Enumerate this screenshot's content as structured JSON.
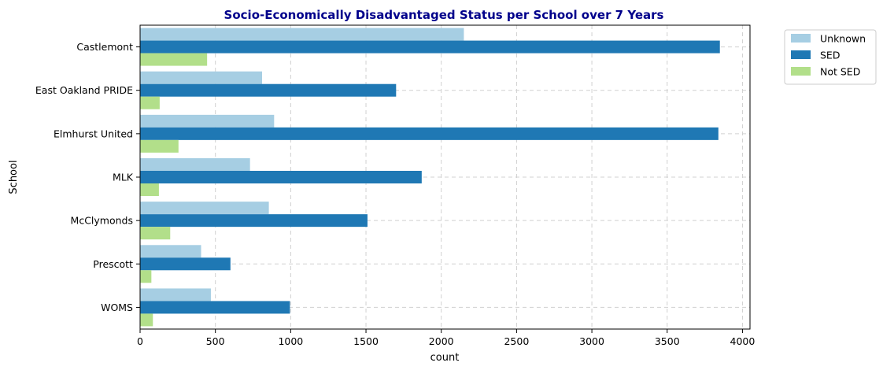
{
  "chart_data": {
    "type": "bar",
    "orientation": "horizontal",
    "title": "Socio-Economically Disadvantaged Status per School over 7 Years",
    "xlabel": "count",
    "ylabel": "School",
    "categories": [
      "Castlemont",
      "East Oakland PRIDE",
      "Elmhurst United",
      "MLK",
      "McClymonds",
      "Prescott",
      "WOMS"
    ],
    "series": [
      {
        "name": "Unknown",
        "color": "#a6cee3",
        "values": [
          2150,
          810,
          890,
          730,
          855,
          405,
          470
        ]
      },
      {
        "name": "SED",
        "color": "#1f78b4",
        "values": [
          3850,
          1700,
          3840,
          1870,
          1510,
          600,
          995
        ]
      },
      {
        "name": "Not SED",
        "color": "#b2df8a",
        "values": [
          445,
          130,
          255,
          125,
          200,
          75,
          85
        ]
      }
    ],
    "xlim": [
      0,
      4050
    ],
    "xticks": [
      0,
      500,
      1000,
      1500,
      2000,
      2500,
      3000,
      3500,
      4000
    ],
    "grid": true,
    "legend_position": "outside upper right",
    "title_color": "#00008b"
  }
}
